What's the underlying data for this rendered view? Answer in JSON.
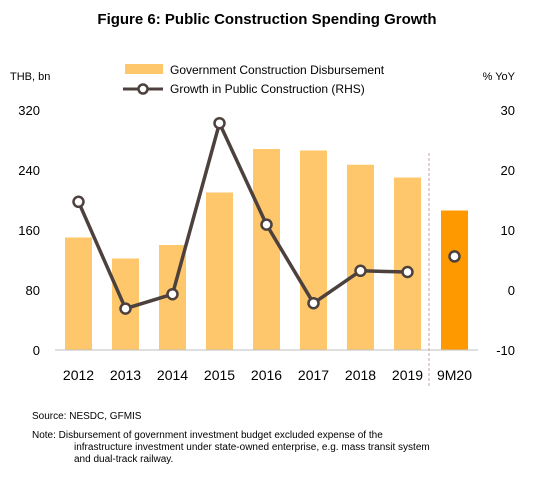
{
  "chart_data": {
    "type": "bar+line",
    "title": "Figure 6: Public Construction Spending Growth",
    "left_axis_label": "THB, bn",
    "right_axis_label": "% YoY",
    "categories": [
      "2012",
      "2013",
      "2014",
      "2015",
      "2016",
      "2017",
      "2018",
      "2019",
      "9M20"
    ],
    "left_ylim": [
      0,
      320
    ],
    "left_ticks": [
      "0",
      "80",
      "160",
      "240",
      "320"
    ],
    "right_ylim": [
      -10,
      30
    ],
    "right_ticks": [
      "-10",
      "0",
      "10",
      "20",
      "30"
    ],
    "series": [
      {
        "name": "Government Construction Disbursement",
        "kind": "bar",
        "axis": "left",
        "values": [
          150,
          122,
          140,
          210,
          268,
          266,
          247,
          230,
          186
        ],
        "color": "#FFC76B",
        "highlight_color": "#FF9900"
      },
      {
        "name": "Growth in Public Construction (RHS)",
        "kind": "line",
        "axis": "right",
        "values": [
          14.7,
          -3.1,
          -0.7,
          27.8,
          10.9,
          -2.2,
          3.2,
          3.0,
          5.6
        ],
        "color": "#4D413E"
      }
    ],
    "grid": false,
    "legend_position": "top"
  },
  "notes": {
    "source": "Source: NESDC, GFMIS",
    "note_lines": [
      "Note: Disbursement of government investment budget excluded expense of the",
      "infrastructure investment under state-owned enterprise, e.g. mass transit system",
      "and dual-track railway."
    ]
  }
}
